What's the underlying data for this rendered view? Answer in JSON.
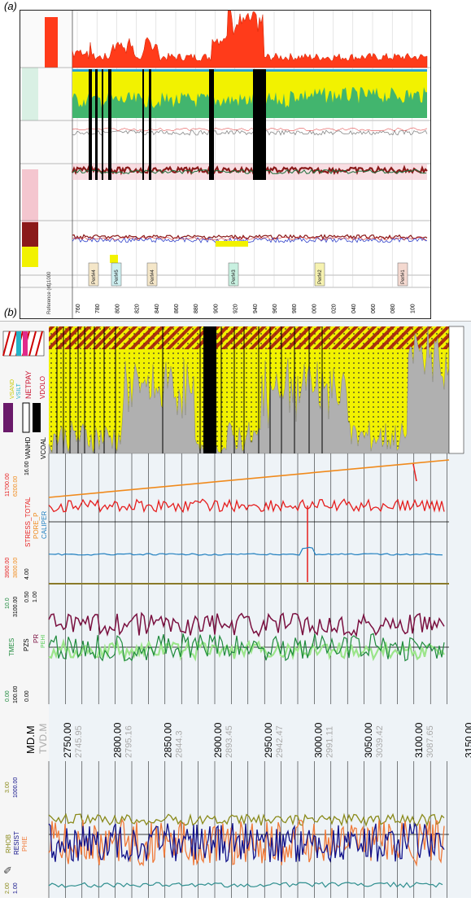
{
  "panel_a": {
    "label": "(a)",
    "track_labels": [
      "Perf#4",
      "Perf#5",
      "Perf#4",
      "Perf#3",
      "Perf#2",
      "Perf#1"
    ],
    "perf_colors": [
      "#f4e6c8",
      "#cdeff0",
      "#f4e6c8",
      "#c8f0e0",
      "#f6f2b0",
      "#f4d9d0"
    ],
    "depth_header": "Reference (m)",
    "scale": "1:1000",
    "depth_ticks": [
      "760",
      "780",
      "800",
      "820",
      "840",
      "860",
      "880",
      "900",
      "920",
      "940",
      "960",
      "980",
      "000",
      "020",
      "040",
      "060",
      "080",
      "100"
    ]
  },
  "panel_b": {
    "label": "(b)",
    "track_headers": {
      "pay": [
        "NETPAY"
      ],
      "lith": [
        "VCOAL",
        "VANHD"
      ],
      "stress": [
        "STRESS_TOTAL",
        "PORE_P",
        "CALIPER"
      ],
      "stress_scale": [
        "11700.00",
        "6200.00",
        "16.00",
        "3900.00",
        "3800.00",
        "4.00"
      ],
      "mech": [
        "TMES",
        "PZS",
        "PR",
        "PEHI"
      ],
      "mech_scale": [
        "10.0",
        "3100.00",
        "0.50",
        "1.00",
        "0.00",
        "100.00",
        "0.00"
      ],
      "logs": [
        "RHOB",
        "RESIST",
        "PHIE"
      ],
      "log_scale": [
        "3.00",
        "1000.00",
        "1.00",
        "2.00",
        "0.00",
        "0.00"
      ],
      "lithology_legend": [
        "VSAND",
        "VSILT",
        "VDOLO"
      ]
    },
    "depth_header": "MD.M",
    "tvd_header": "TVD.M",
    "md_ticks": [
      "2750.00",
      "2800.00",
      "2850.00",
      "2900.00",
      "2950.00",
      "3000.00",
      "3050.00",
      "3100.00",
      "3150.00"
    ],
    "tvd_ticks": [
      "2745.95",
      "2795.16",
      "2844.3",
      "2893.45",
      "2942.47",
      "2991.11",
      "3039.42",
      "3087.65"
    ]
  },
  "colors": {
    "red_fill": "#ff3b1a",
    "yellow": "#f2f200",
    "green": "#2fae7a",
    "dark_red": "#8b1a1a",
    "stress_red": "#e61e1e",
    "pore_orange": "#f08a1c",
    "caliper_blue": "#1f7fc0",
    "tmes_green": "#1e8a3c",
    "pr_maroon": "#7a1040",
    "pehi_light": "#9be58a",
    "rhob_olive": "#8a8a1a",
    "resist_navy": "#12128a",
    "phie_orange": "#f07a3a",
    "teal": "#2f8f8f",
    "grey": "#b0b0b0"
  },
  "chart_data": [
    {
      "type": "line",
      "title": "",
      "xlabel": "Reference (m)",
      "ylabel": "",
      "categories": [
        "760",
        "780",
        "800",
        "820",
        "840",
        "860",
        "880",
        "900",
        "920",
        "940",
        "960",
        "980",
        "000",
        "020",
        "040",
        "060",
        "080",
        "100"
      ]
    },
    {
      "type": "line",
      "title": "",
      "xlabel": "MD.M",
      "ylabel": "",
      "x": [
        2750,
        2800,
        2850,
        2900,
        2950,
        3000,
        3050,
        3100,
        3150
      ],
      "series": [
        {
          "name": "STRESS_TOTAL"
        },
        {
          "name": "PORE_P"
        },
        {
          "name": "CALIPER"
        },
        {
          "name": "TMES"
        },
        {
          "name": "PR"
        },
        {
          "name": "RHOB"
        },
        {
          "name": "RESIST"
        },
        {
          "name": "PHIE"
        }
      ]
    }
  ]
}
